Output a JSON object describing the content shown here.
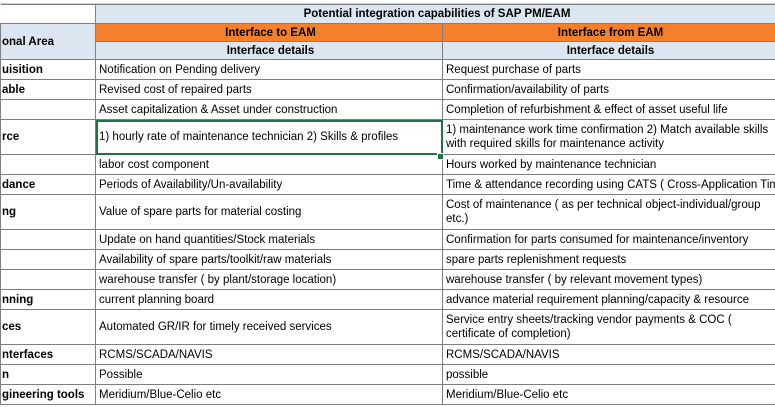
{
  "sheet": {
    "title": "Potential integration capabilities of SAP PM/EAM",
    "area_header": "onal Area",
    "interface_to": "Interface to EAM",
    "interface_from": "Interface from EAM",
    "details_to": "Interface details",
    "details_from": "Interface details",
    "rows": [
      {
        "area": "uisition",
        "to": "Notification on Pending delivery",
        "from": "Request purchase of parts"
      },
      {
        "area": "able",
        "to": "Revised cost of repaired parts",
        "from": "Confirmation/availability of parts"
      },
      {
        "area": "",
        "to": "Asset capitalization & Asset under construction",
        "from": "Completion of refurbishment & effect of asset useful life"
      },
      {
        "area": "rce",
        "to": "1) hourly rate of maintenance technician 2) Skills & profiles",
        "from": "1) maintenance work time confirmation 2) Match available skills with required skills for maintenance activity"
      },
      {
        "area": "",
        "to": "labor cost component",
        "from": "Hours worked by maintenance technician"
      },
      {
        "area": "dance",
        "to": "Periods of Availability/Un-availability",
        "from": "Time & attendance recording using CATS ( Cross-Application Time Sheet)"
      },
      {
        "area": "ng",
        "to": "Value of spare parts for material costing",
        "from": "Cost of maintenance ( as per technical object-individual/group etc.)"
      },
      {
        "area": "",
        "to": "Update on hand quantities/Stock materials",
        "from": "Confirmation for parts consumed for maintenance/inventory"
      },
      {
        "area": "",
        "to": "Availability of spare parts/toolkit/raw materials",
        "from": "spare parts replenishment requests"
      },
      {
        "area": "",
        "to": "warehouse transfer ( by plant/storage location)",
        "from": "warehouse transfer ( by relevant movement types)"
      },
      {
        "area": "nning",
        "to": "current planning board",
        "from": "advance material requirement planning/capacity & resource"
      },
      {
        "area": "ces",
        "to": "Automated GR/IR for timely received services",
        "from": "Service entry sheets/tracking vendor payments & COC ( certificate of completion)"
      },
      {
        "area": "nterfaces",
        "to": "RCMS/SCADA/NAVIS",
        "from": "RCMS/SCADA/NAVIS"
      },
      {
        "area": "n",
        "to": "Possible",
        "from": "possible"
      },
      {
        "area": "gineering tools",
        "to": "Meridium/Blue-Celio etc",
        "from": "Meridium/Blue-Celio etc"
      }
    ]
  }
}
